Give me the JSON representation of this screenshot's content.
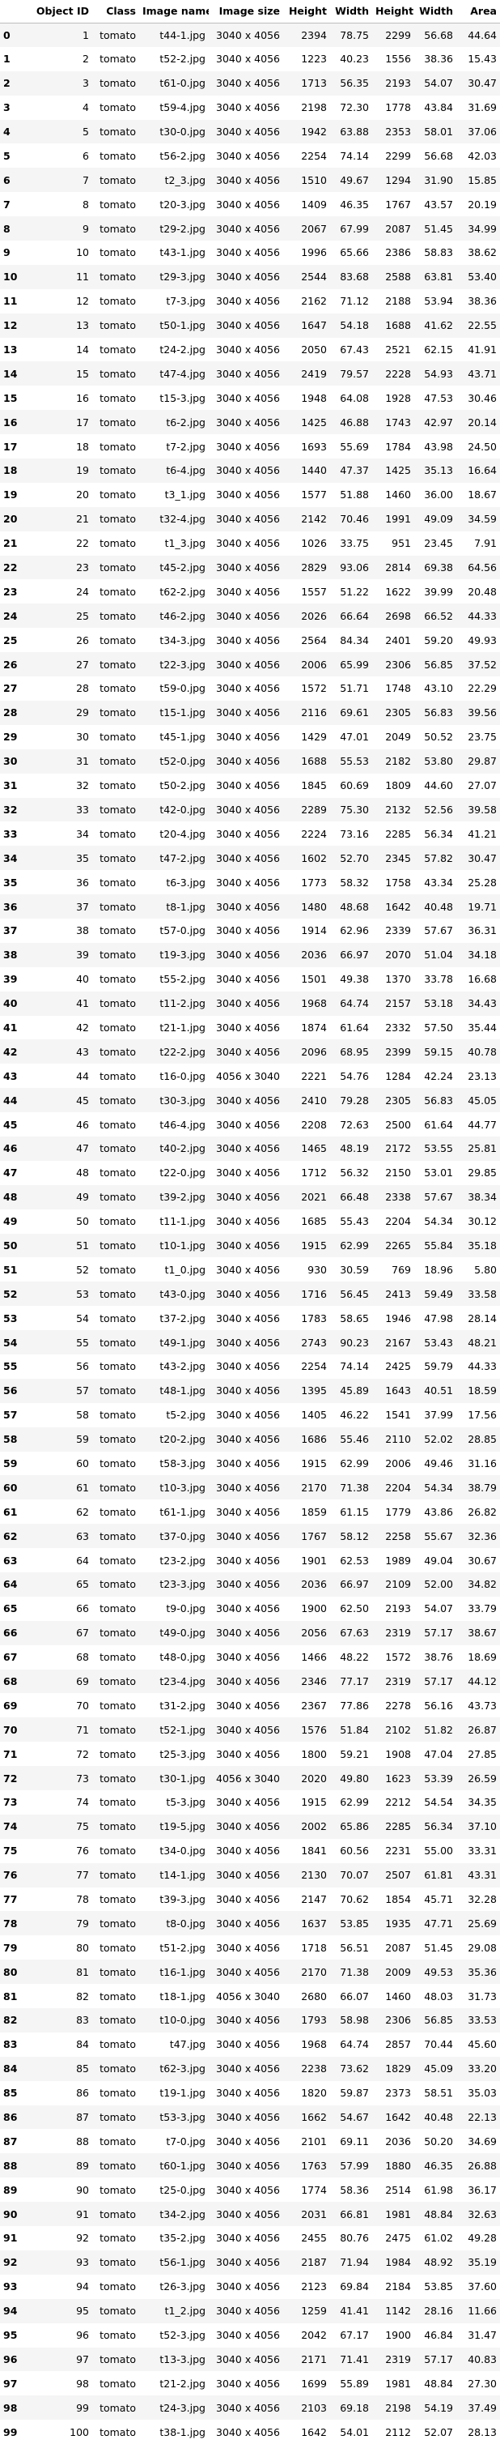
{
  "columns": [
    "",
    "Object ID",
    "Class",
    "Image name",
    "Image size",
    "Height",
    "Width",
    "Height",
    "Width",
    "Area"
  ],
  "rows": [
    [
      "0",
      "1",
      "tomato",
      "t44-1.jpg",
      "3040 x 4056",
      "2394",
      "78.75",
      "2299",
      "56.68",
      "44.64"
    ],
    [
      "1",
      "2",
      "tomato",
      "t52-2.jpg",
      "3040 x 4056",
      "1223",
      "40.23",
      "1556",
      "38.36",
      "15.43"
    ],
    [
      "2",
      "3",
      "tomato",
      "t61-0.jpg",
      "3040 x 4056",
      "1713",
      "56.35",
      "2193",
      "54.07",
      "30.47"
    ],
    [
      "3",
      "4",
      "tomato",
      "t59-4.jpg",
      "3040 x 4056",
      "2198",
      "72.30",
      "1778",
      "43.84",
      "31.69"
    ],
    [
      "4",
      "5",
      "tomato",
      "t30-0.jpg",
      "3040 x 4056",
      "1942",
      "63.88",
      "2353",
      "58.01",
      "37.06"
    ],
    [
      "5",
      "6",
      "tomato",
      "t56-2.jpg",
      "3040 x 4056",
      "2254",
      "74.14",
      "2299",
      "56.68",
      "42.03"
    ],
    [
      "6",
      "7",
      "tomato",
      "t2_3.jpg",
      "3040 x 4056",
      "1510",
      "49.67",
      "1294",
      "31.90",
      "15.85"
    ],
    [
      "7",
      "8",
      "tomato",
      "t20-3.jpg",
      "3040 x 4056",
      "1409",
      "46.35",
      "1767",
      "43.57",
      "20.19"
    ],
    [
      "8",
      "9",
      "tomato",
      "t29-2.jpg",
      "3040 x 4056",
      "2067",
      "67.99",
      "2087",
      "51.45",
      "34.99"
    ],
    [
      "9",
      "10",
      "tomato",
      "t43-1.jpg",
      "3040 x 4056",
      "1996",
      "65.66",
      "2386",
      "58.83",
      "38.62"
    ],
    [
      "10",
      "11",
      "tomato",
      "t29-3.jpg",
      "3040 x 4056",
      "2544",
      "83.68",
      "2588",
      "63.81",
      "53.40"
    ],
    [
      "11",
      "12",
      "tomato",
      "t7-3.jpg",
      "3040 x 4056",
      "2162",
      "71.12",
      "2188",
      "53.94",
      "38.36"
    ],
    [
      "12",
      "13",
      "tomato",
      "t50-1.jpg",
      "3040 x 4056",
      "1647",
      "54.18",
      "1688",
      "41.62",
      "22.55"
    ],
    [
      "13",
      "14",
      "tomato",
      "t24-2.jpg",
      "3040 x 4056",
      "2050",
      "67.43",
      "2521",
      "62.15",
      "41.91"
    ],
    [
      "14",
      "15",
      "tomato",
      "t47-4.jpg",
      "3040 x 4056",
      "2419",
      "79.57",
      "2228",
      "54.93",
      "43.71"
    ],
    [
      "15",
      "16",
      "tomato",
      "t15-3.jpg",
      "3040 x 4056",
      "1948",
      "64.08",
      "1928",
      "47.53",
      "30.46"
    ],
    [
      "16",
      "17",
      "tomato",
      "t6-2.jpg",
      "3040 x 4056",
      "1425",
      "46.88",
      "1743",
      "42.97",
      "20.14"
    ],
    [
      "17",
      "18",
      "tomato",
      "t7-2.jpg",
      "3040 x 4056",
      "1693",
      "55.69",
      "1784",
      "43.98",
      "24.50"
    ],
    [
      "18",
      "19",
      "tomato",
      "t6-4.jpg",
      "3040 x 4056",
      "1440",
      "47.37",
      "1425",
      "35.13",
      "16.64"
    ],
    [
      "19",
      "20",
      "tomato",
      "t3_1.jpg",
      "3040 x 4056",
      "1577",
      "51.88",
      "1460",
      "36.00",
      "18.67"
    ],
    [
      "20",
      "21",
      "tomato",
      "t32-4.jpg",
      "3040 x 4056",
      "2142",
      "70.46",
      "1991",
      "49.09",
      "34.59"
    ],
    [
      "21",
      "22",
      "tomato",
      "t1_3.jpg",
      "3040 x 4056",
      "1026",
      "33.75",
      "951",
      "23.45",
      "7.91"
    ],
    [
      "22",
      "23",
      "tomato",
      "t45-2.jpg",
      "3040 x 4056",
      "2829",
      "93.06",
      "2814",
      "69.38",
      "64.56"
    ],
    [
      "23",
      "24",
      "tomato",
      "t62-2.jpg",
      "3040 x 4056",
      "1557",
      "51.22",
      "1622",
      "39.99",
      "20.48"
    ],
    [
      "24",
      "25",
      "tomato",
      "t46-2.jpg",
      "3040 x 4056",
      "2026",
      "66.64",
      "2698",
      "66.52",
      "44.33"
    ],
    [
      "25",
      "26",
      "tomato",
      "t34-3.jpg",
      "3040 x 4056",
      "2564",
      "84.34",
      "2401",
      "59.20",
      "49.93"
    ],
    [
      "26",
      "27",
      "tomato",
      "t22-3.jpg",
      "3040 x 4056",
      "2006",
      "65.99",
      "2306",
      "56.85",
      "37.52"
    ],
    [
      "27",
      "28",
      "tomato",
      "t59-0.jpg",
      "3040 x 4056",
      "1572",
      "51.71",
      "1748",
      "43.10",
      "22.29"
    ],
    [
      "28",
      "29",
      "tomato",
      "t15-1.jpg",
      "3040 x 4056",
      "2116",
      "69.61",
      "2305",
      "56.83",
      "39.56"
    ],
    [
      "29",
      "30",
      "tomato",
      "t45-1.jpg",
      "3040 x 4056",
      "1429",
      "47.01",
      "2049",
      "50.52",
      "23.75"
    ],
    [
      "30",
      "31",
      "tomato",
      "t52-0.jpg",
      "3040 x 4056",
      "1688",
      "55.53",
      "2182",
      "53.80",
      "29.87"
    ],
    [
      "31",
      "32",
      "tomato",
      "t50-2.jpg",
      "3040 x 4056",
      "1845",
      "60.69",
      "1809",
      "44.60",
      "27.07"
    ],
    [
      "32",
      "33",
      "tomato",
      "t42-0.jpg",
      "3040 x 4056",
      "2289",
      "75.30",
      "2132",
      "52.56",
      "39.58"
    ],
    [
      "33",
      "34",
      "tomato",
      "t20-4.jpg",
      "3040 x 4056",
      "2224",
      "73.16",
      "2285",
      "56.34",
      "41.21"
    ],
    [
      "34",
      "35",
      "tomato",
      "t47-2.jpg",
      "3040 x 4056",
      "1602",
      "52.70",
      "2345",
      "57.82",
      "30.47"
    ],
    [
      "35",
      "36",
      "tomato",
      "t6-3.jpg",
      "3040 x 4056",
      "1773",
      "58.32",
      "1758",
      "43.34",
      "25.28"
    ],
    [
      "36",
      "37",
      "tomato",
      "t8-1.jpg",
      "3040 x 4056",
      "1480",
      "48.68",
      "1642",
      "40.48",
      "19.71"
    ],
    [
      "37",
      "38",
      "tomato",
      "t57-0.jpg",
      "3040 x 4056",
      "1914",
      "62.96",
      "2339",
      "57.67",
      "36.31"
    ],
    [
      "38",
      "39",
      "tomato",
      "t19-3.jpg",
      "3040 x 4056",
      "2036",
      "66.97",
      "2070",
      "51.04",
      "34.18"
    ],
    [
      "39",
      "40",
      "tomato",
      "t55-2.jpg",
      "3040 x 4056",
      "1501",
      "49.38",
      "1370",
      "33.78",
      "16.68"
    ],
    [
      "40",
      "41",
      "tomato",
      "t11-2.jpg",
      "3040 x 4056",
      "1968",
      "64.74",
      "2157",
      "53.18",
      "34.43"
    ],
    [
      "41",
      "42",
      "tomato",
      "t21-1.jpg",
      "3040 x 4056",
      "1874",
      "61.64",
      "2332",
      "57.50",
      "35.44"
    ],
    [
      "42",
      "43",
      "tomato",
      "t22-2.jpg",
      "3040 x 4056",
      "2096",
      "68.95",
      "2399",
      "59.15",
      "40.78"
    ],
    [
      "43",
      "44",
      "tomato",
      "t16-0.jpg",
      "4056 x 3040",
      "2221",
      "54.76",
      "1284",
      "42.24",
      "23.13"
    ],
    [
      "44",
      "45",
      "tomato",
      "t30-3.jpg",
      "3040 x 4056",
      "2410",
      "79.28",
      "2305",
      "56.83",
      "45.05"
    ],
    [
      "45",
      "46",
      "tomato",
      "t46-4.jpg",
      "3040 x 4056",
      "2208",
      "72.63",
      "2500",
      "61.64",
      "44.77"
    ],
    [
      "46",
      "47",
      "tomato",
      "t40-2.jpg",
      "3040 x 4056",
      "1465",
      "48.19",
      "2172",
      "53.55",
      "25.81"
    ],
    [
      "47",
      "48",
      "tomato",
      "t22-0.jpg",
      "3040 x 4056",
      "1712",
      "56.32",
      "2150",
      "53.01",
      "29.85"
    ],
    [
      "48",
      "49",
      "tomato",
      "t39-2.jpg",
      "3040 x 4056",
      "2021",
      "66.48",
      "2338",
      "57.67",
      "38.34"
    ],
    [
      "49",
      "50",
      "tomato",
      "t11-1.jpg",
      "3040 x 4056",
      "1685",
      "55.43",
      "2204",
      "54.34",
      "30.12"
    ],
    [
      "50",
      "51",
      "tomato",
      "t10-1.jpg",
      "3040 x 4056",
      "1915",
      "62.99",
      "2265",
      "55.84",
      "35.18"
    ],
    [
      "51",
      "52",
      "tomato",
      "t1_0.jpg",
      "3040 x 4056",
      "930",
      "30.59",
      "769",
      "18.96",
      "5.80"
    ],
    [
      "52",
      "53",
      "tomato",
      "t43-0.jpg",
      "3040 x 4056",
      "1716",
      "56.45",
      "2413",
      "59.49",
      "33.58"
    ],
    [
      "53",
      "54",
      "tomato",
      "t37-2.jpg",
      "3040 x 4056",
      "1783",
      "58.65",
      "1946",
      "47.98",
      "28.14"
    ],
    [
      "54",
      "55",
      "tomato",
      "t49-1.jpg",
      "3040 x 4056",
      "2743",
      "90.23",
      "2167",
      "53.43",
      "48.21"
    ],
    [
      "55",
      "56",
      "tomato",
      "t43-2.jpg",
      "3040 x 4056",
      "2254",
      "74.14",
      "2425",
      "59.79",
      "44.33"
    ],
    [
      "56",
      "57",
      "tomato",
      "t48-1.jpg",
      "3040 x 4056",
      "1395",
      "45.89",
      "1643",
      "40.51",
      "18.59"
    ],
    [
      "57",
      "58",
      "tomato",
      "t5-2.jpg",
      "3040 x 4056",
      "1405",
      "46.22",
      "1541",
      "37.99",
      "17.56"
    ],
    [
      "58",
      "59",
      "tomato",
      "t20-2.jpg",
      "3040 x 4056",
      "1686",
      "55.46",
      "2110",
      "52.02",
      "28.85"
    ],
    [
      "59",
      "60",
      "tomato",
      "t58-3.jpg",
      "3040 x 4056",
      "1915",
      "62.99",
      "2006",
      "49.46",
      "31.16"
    ],
    [
      "60",
      "61",
      "tomato",
      "t10-3.jpg",
      "3040 x 4056",
      "2170",
      "71.38",
      "2204",
      "54.34",
      "38.79"
    ],
    [
      "61",
      "62",
      "tomato",
      "t61-1.jpg",
      "3040 x 4056",
      "1859",
      "61.15",
      "1779",
      "43.86",
      "26.82"
    ],
    [
      "62",
      "63",
      "tomato",
      "t37-0.jpg",
      "3040 x 4056",
      "1767",
      "58.12",
      "2258",
      "55.67",
      "32.36"
    ],
    [
      "63",
      "64",
      "tomato",
      "t23-2.jpg",
      "3040 x 4056",
      "1901",
      "62.53",
      "1989",
      "49.04",
      "30.67"
    ],
    [
      "64",
      "65",
      "tomato",
      "t23-3.jpg",
      "3040 x 4056",
      "2036",
      "66.97",
      "2109",
      "52.00",
      "34.82"
    ],
    [
      "65",
      "66",
      "tomato",
      "t9-0.jpg",
      "3040 x 4056",
      "1900",
      "62.50",
      "2193",
      "54.07",
      "33.79"
    ],
    [
      "66",
      "67",
      "tomato",
      "t49-0.jpg",
      "3040 x 4056",
      "2056",
      "67.63",
      "2319",
      "57.17",
      "38.67"
    ],
    [
      "67",
      "68",
      "tomato",
      "t48-0.jpg",
      "3040 x 4056",
      "1466",
      "48.22",
      "1572",
      "38.76",
      "18.69"
    ],
    [
      "68",
      "69",
      "tomato",
      "t23-4.jpg",
      "3040 x 4056",
      "2346",
      "77.17",
      "2319",
      "57.17",
      "44.12"
    ],
    [
      "69",
      "70",
      "tomato",
      "t31-2.jpg",
      "3040 x 4056",
      "2367",
      "77.86",
      "2278",
      "56.16",
      "43.73"
    ],
    [
      "70",
      "71",
      "tomato",
      "t52-1.jpg",
      "3040 x 4056",
      "1576",
      "51.84",
      "2102",
      "51.82",
      "26.87"
    ],
    [
      "71",
      "72",
      "tomato",
      "t25-3.jpg",
      "3040 x 4056",
      "1800",
      "59.21",
      "1908",
      "47.04",
      "27.85"
    ],
    [
      "72",
      "73",
      "tomato",
      "t30-1.jpg",
      "4056 x 3040",
      "2020",
      "49.80",
      "1623",
      "53.39",
      "26.59"
    ],
    [
      "73",
      "74",
      "tomato",
      "t5-3.jpg",
      "3040 x 4056",
      "1915",
      "62.99",
      "2212",
      "54.54",
      "34.35"
    ],
    [
      "74",
      "75",
      "tomato",
      "t19-5.jpg",
      "3040 x 4056",
      "2002",
      "65.86",
      "2285",
      "56.34",
      "37.10"
    ],
    [
      "75",
      "76",
      "tomato",
      "t34-0.jpg",
      "3040 x 4056",
      "1841",
      "60.56",
      "2231",
      "55.00",
      "33.31"
    ],
    [
      "76",
      "77",
      "tomato",
      "t14-1.jpg",
      "3040 x 4056",
      "2130",
      "70.07",
      "2507",
      "61.81",
      "43.31"
    ],
    [
      "77",
      "78",
      "tomato",
      "t39-3.jpg",
      "3040 x 4056",
      "2147",
      "70.62",
      "1854",
      "45.71",
      "32.28"
    ],
    [
      "78",
      "79",
      "tomato",
      "t8-0.jpg",
      "3040 x 4056",
      "1637",
      "53.85",
      "1935",
      "47.71",
      "25.69"
    ],
    [
      "79",
      "80",
      "tomato",
      "t51-2.jpg",
      "3040 x 4056",
      "1718",
      "56.51",
      "2087",
      "51.45",
      "29.08"
    ],
    [
      "80",
      "81",
      "tomato",
      "t16-1.jpg",
      "3040 x 4056",
      "2170",
      "71.38",
      "2009",
      "49.53",
      "35.36"
    ],
    [
      "81",
      "82",
      "tomato",
      "t18-1.jpg",
      "4056 x 3040",
      "2680",
      "66.07",
      "1460",
      "48.03",
      "31.73"
    ],
    [
      "82",
      "83",
      "tomato",
      "t10-0.jpg",
      "3040 x 4056",
      "1793",
      "58.98",
      "2306",
      "56.85",
      "33.53"
    ],
    [
      "83",
      "84",
      "tomato",
      "t47.jpg",
      "3040 x 4056",
      "1968",
      "64.74",
      "2857",
      "70.44",
      "45.60"
    ],
    [
      "84",
      "85",
      "tomato",
      "t62-3.jpg",
      "3040 x 4056",
      "2238",
      "73.62",
      "1829",
      "45.09",
      "33.20"
    ],
    [
      "85",
      "86",
      "tomato",
      "t19-1.jpg",
      "3040 x 4056",
      "1820",
      "59.87",
      "2373",
      "58.51",
      "35.03"
    ],
    [
      "86",
      "87",
      "tomato",
      "t53-3.jpg",
      "3040 x 4056",
      "1662",
      "54.67",
      "1642",
      "40.48",
      "22.13"
    ],
    [
      "87",
      "88",
      "tomato",
      "t7-0.jpg",
      "3040 x 4056",
      "2101",
      "69.11",
      "2036",
      "50.20",
      "34.69"
    ],
    [
      "88",
      "89",
      "tomato",
      "t60-1.jpg",
      "3040 x 4056",
      "1763",
      "57.99",
      "1880",
      "46.35",
      "26.88"
    ],
    [
      "89",
      "90",
      "tomato",
      "t25-0.jpg",
      "3040 x 4056",
      "1774",
      "58.36",
      "2514",
      "61.98",
      "36.17"
    ],
    [
      "90",
      "91",
      "tomato",
      "t34-2.jpg",
      "3040 x 4056",
      "2031",
      "66.81",
      "1981",
      "48.84",
      "32.63"
    ],
    [
      "91",
      "92",
      "tomato",
      "t35-2.jpg",
      "3040 x 4056",
      "2455",
      "80.76",
      "2475",
      "61.02",
      "49.28"
    ],
    [
      "92",
      "93",
      "tomato",
      "t56-1.jpg",
      "3040 x 4056",
      "2187",
      "71.94",
      "1984",
      "48.92",
      "35.19"
    ],
    [
      "93",
      "94",
      "tomato",
      "t26-3.jpg",
      "3040 x 4056",
      "2123",
      "69.84",
      "2184",
      "53.85",
      "37.60"
    ],
    [
      "94",
      "95",
      "tomato",
      "t1_2.jpg",
      "3040 x 4056",
      "1259",
      "41.41",
      "1142",
      "28.16",
      "11.66"
    ],
    [
      "95",
      "96",
      "tomato",
      "t52-3.jpg",
      "3040 x 4056",
      "2042",
      "67.17",
      "1900",
      "46.84",
      "31.47"
    ],
    [
      "96",
      "97",
      "tomato",
      "t13-3.jpg",
      "3040 x 4056",
      "2171",
      "71.41",
      "2319",
      "57.17",
      "40.83"
    ],
    [
      "97",
      "98",
      "tomato",
      "t21-2.jpg",
      "3040 x 4056",
      "1699",
      "55.89",
      "1981",
      "48.84",
      "27.30"
    ],
    [
      "98",
      "99",
      "tomato",
      "t24-3.jpg",
      "3040 x 4056",
      "2103",
      "69.18",
      "2198",
      "54.19",
      "37.49"
    ],
    [
      "99",
      "100",
      "tomato",
      "t38-1.jpg",
      "3040 x 4056",
      "1642",
      "54.01",
      "2112",
      "52.07",
      "28.13"
    ]
  ]
}
